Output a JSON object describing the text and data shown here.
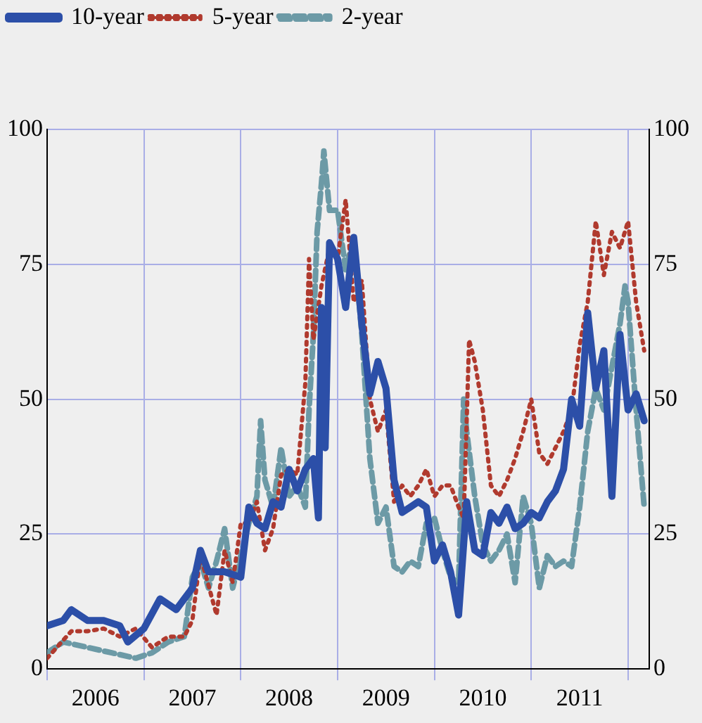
{
  "chart_data": {
    "type": "line",
    "legend": "top left",
    "grid": true,
    "marker": "none",
    "xlim": [
      "2006-01",
      "2012-03-20"
    ],
    "xticks": [
      {
        "value": "2006-01",
        "label": null
      },
      {
        "value": "2006-07",
        "label": "2006"
      },
      {
        "value": "2007-01",
        "label": null
      },
      {
        "value": "2007-07",
        "label": "2007"
      },
      {
        "value": "2008-01",
        "label": null
      },
      {
        "value": "2008-07",
        "label": "2008"
      },
      {
        "value": "2009-01",
        "label": null
      },
      {
        "value": "2009-07",
        "label": "2009"
      },
      {
        "value": "2010-01",
        "label": null
      },
      {
        "value": "2010-07",
        "label": "2010"
      },
      {
        "value": "2011-01",
        "label": null
      },
      {
        "value": "2011-07",
        "label": "2011"
      },
      {
        "value": "2012-01",
        "label": null
      }
    ],
    "ylim": [
      0,
      100
    ],
    "yticks": [
      0,
      25,
      50,
      75,
      100
    ],
    "y2lim": [
      0,
      100
    ],
    "y2ticks": [
      0,
      25,
      50,
      75,
      100
    ],
    "series": [
      {
        "name": "10-year",
        "color": "#2c4fa8",
        "line_style": "solid",
        "x": [
          "2006-01",
          "2006-03",
          "2006-04",
          "2006-06",
          "2006-08",
          "2006-10",
          "2006-11",
          "2007-01",
          "2007-03",
          "2007-05",
          "2007-07",
          "2007-08",
          "2007-09",
          "2007-11",
          "2008-01",
          "2008-02",
          "2008-03",
          "2008-04",
          "2008-05",
          "2008-06",
          "2008-07",
          "2008-08",
          "2008-09",
          "2008-10",
          "2008-10-20",
          "2008-11",
          "2008-11-15",
          "2008-12",
          "2009-01",
          "2009-02",
          "2009-03",
          "2009-04",
          "2009-05",
          "2009-06",
          "2009-07",
          "2009-08",
          "2009-09",
          "2009-10",
          "2009-11",
          "2009-12",
          "2010-01",
          "2010-02",
          "2010-03",
          "2010-04",
          "2010-05",
          "2010-06",
          "2010-07",
          "2010-08",
          "2010-09",
          "2010-10",
          "2010-11",
          "2010-12",
          "2011-01",
          "2011-02",
          "2011-03",
          "2011-04",
          "2011-05",
          "2011-06",
          "2011-07",
          "2011-08",
          "2011-09",
          "2011-10",
          "2011-11",
          "2011-12",
          "2012-01",
          "2012-02",
          "2012-03"
        ],
        "values": [
          8,
          9,
          11,
          9,
          9,
          8,
          5,
          7.5,
          13,
          11,
          15,
          22,
          18,
          18,
          17,
          30,
          27,
          26,
          31,
          30,
          37,
          33,
          37,
          39,
          28,
          67,
          41,
          79,
          76,
          67,
          80,
          64,
          51,
          57,
          52,
          35,
          29,
          30,
          31,
          30,
          20,
          23,
          18,
          10,
          31,
          22,
          21,
          29,
          27,
          30,
          26,
          27,
          29,
          28,
          31,
          33,
          37,
          50,
          45,
          66,
          52,
          59,
          32,
          62,
          48,
          51,
          46
        ]
      },
      {
        "name": "5-year",
        "color": "#b03a2e",
        "line_style": "dotted",
        "x": [
          "2006-01",
          "2006-04",
          "2006-06",
          "2006-08",
          "2006-10",
          "2006-12",
          "2007-02",
          "2007-04",
          "2007-06",
          "2007-07",
          "2007-08",
          "2007-10",
          "2007-11",
          "2007-12",
          "2008-01",
          "2008-02",
          "2008-03",
          "2008-04",
          "2008-05",
          "2008-06",
          "2008-07",
          "2008-08",
          "2008-09",
          "2008-09-15",
          "2008-10",
          "2008-11",
          "2008-12",
          "2009-01",
          "2009-02",
          "2009-03",
          "2009-04",
          "2009-05",
          "2009-06",
          "2009-07",
          "2009-08",
          "2009-09",
          "2009-10",
          "2009-11",
          "2009-12",
          "2010-01",
          "2010-02",
          "2010-03",
          "2010-04",
          "2010-04-20",
          "2010-05",
          "2010-05-10",
          "2010-06",
          "2010-07",
          "2010-08",
          "2010-09",
          "2010-10",
          "2010-11",
          "2010-12",
          "2011-01",
          "2011-02",
          "2011-03",
          "2011-04",
          "2011-05",
          "2011-06",
          "2011-07",
          "2011-08",
          "2011-09",
          "2011-10",
          "2011-11",
          "2011-12",
          "2012-01",
          "2012-02",
          "2012-03"
        ],
        "values": [
          2,
          7,
          7,
          7.5,
          6,
          7.5,
          4,
          6,
          6,
          9,
          21,
          10,
          22,
          16,
          27,
          27,
          31,
          22,
          26,
          36,
          37,
          36,
          53,
          76,
          61,
          71,
          78,
          76,
          87,
          68,
          72,
          50,
          44,
          48,
          31,
          34,
          32,
          34,
          37,
          32,
          34,
          34,
          30,
          28,
          46,
          61,
          57,
          48,
          34,
          32,
          35,
          39,
          44,
          50,
          40,
          38,
          41,
          44,
          48,
          60,
          68,
          83,
          73,
          81,
          78,
          83,
          68,
          59
        ]
      },
      {
        "name": "2-year",
        "color": "#6c9aa6",
        "line_style": "dashed",
        "x": [
          "2006-01",
          "2006-03",
          "2006-06",
          "2006-09",
          "2006-12",
          "2007-02",
          "2007-04",
          "2007-06",
          "2007-07",
          "2007-08",
          "2007-09",
          "2007-10",
          "2007-11",
          "2007-12",
          "2008-01",
          "2008-02",
          "2008-03",
          "2008-03-15",
          "2008-04",
          "2008-05",
          "2008-06",
          "2008-07",
          "2008-08",
          "2008-09",
          "2008-09-15",
          "2008-10",
          "2008-10-15",
          "2008-11",
          "2008-11-10",
          "2008-12",
          "2009-01",
          "2009-02",
          "2009-03",
          "2009-04",
          "2009-05",
          "2009-06",
          "2009-07",
          "2009-08",
          "2009-09",
          "2009-10",
          "2009-11",
          "2009-12",
          "2010-01",
          "2010-02",
          "2010-03",
          "2010-04",
          "2010-04-20",
          "2010-05",
          "2010-06",
          "2010-07",
          "2010-08",
          "2010-09",
          "2010-10",
          "2010-11",
          "2010-12",
          "2011-01",
          "2011-02",
          "2011-03",
          "2011-04",
          "2011-05",
          "2011-06",
          "2011-07",
          "2011-08",
          "2011-09",
          "2011-10",
          "2011-11",
          "2011-12",
          "2011-12-20",
          "2012-01",
          "2012-02",
          "2012-03"
        ],
        "values": [
          3,
          5,
          4,
          3,
          2,
          3,
          5,
          6,
          17,
          20,
          15,
          20,
          26,
          15,
          21,
          27,
          32,
          46,
          35,
          30,
          41,
          32,
          34,
          30,
          48,
          62,
          81,
          90,
          96,
          85,
          85,
          74,
          80,
          62,
          39,
          27,
          30,
          19,
          18,
          20,
          19,
          27,
          28,
          22,
          17,
          16,
          50,
          44,
          32,
          23,
          20,
          22,
          25,
          16,
          32,
          27,
          15,
          21,
          19,
          20,
          19,
          30,
          44,
          52,
          48,
          56,
          64,
          71,
          68,
          48,
          30
        ]
      }
    ]
  }
}
